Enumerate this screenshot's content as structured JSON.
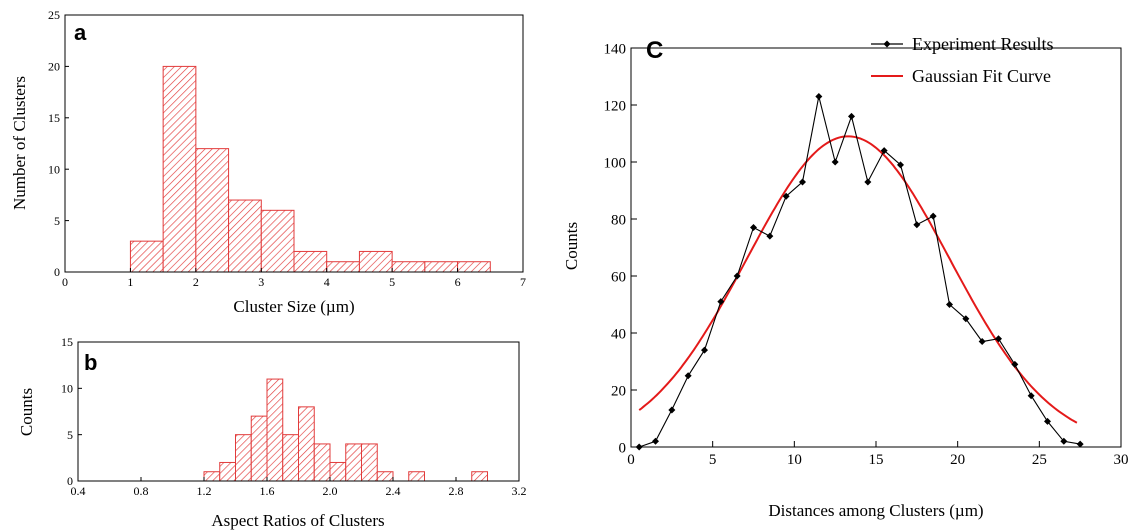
{
  "chart_data": [
    {
      "panel": "a",
      "type": "bar",
      "xlabel": "Cluster Size (µm)",
      "ylabel": "Number of Clusters",
      "xlim": [
        0,
        7
      ],
      "ylim": [
        0,
        25
      ],
      "xticks": [
        0,
        1,
        2,
        3,
        4,
        5,
        6,
        7
      ],
      "yticks": [
        0,
        5,
        10,
        15,
        20,
        25
      ],
      "bin_width": 0.5,
      "bins": [
        1.0,
        1.5,
        2.0,
        2.5,
        3.0,
        3.5,
        4.0,
        4.5,
        5.0,
        5.5,
        6.0
      ],
      "values": [
        3,
        20,
        12,
        7,
        6,
        2,
        1,
        2,
        1,
        1,
        1
      ],
      "color": "#e23b3b",
      "fill": "hatched"
    },
    {
      "panel": "b",
      "type": "bar",
      "xlabel": "Aspect Ratios of Clusters",
      "ylabel": "Counts",
      "xlim": [
        0.4,
        3.2
      ],
      "ylim": [
        0,
        15
      ],
      "xticks": [
        "0.4",
        "0.8",
        "1.2",
        "1.6",
        "2.0",
        "2.4",
        "2.8",
        "3.2"
      ],
      "yticks": [
        0,
        5,
        10,
        15
      ],
      "bin_width": 0.1,
      "bins": [
        1.2,
        1.3,
        1.4,
        1.5,
        1.6,
        1.7,
        1.8,
        1.9,
        2.0,
        2.1,
        2.2,
        2.3,
        2.5,
        2.9
      ],
      "values": [
        1,
        2,
        5,
        7,
        11,
        5,
        8,
        4,
        2,
        4,
        4,
        1,
        1,
        1
      ],
      "color": "#e23b3b",
      "fill": "hatched"
    },
    {
      "panel": "C",
      "type": "line",
      "xlabel": "Distances among Clusters (µm)",
      "ylabel": "Counts",
      "xlim": [
        0,
        30
      ],
      "ylim": [
        0,
        140
      ],
      "xticks": [
        0,
        5,
        10,
        15,
        20,
        25,
        30
      ],
      "yticks": [
        0,
        20,
        40,
        60,
        80,
        100,
        120,
        140
      ],
      "legend_position": "top-right",
      "series": [
        {
          "name": "Experiment Results",
          "color": "#000000",
          "marker": "diamond",
          "x": [
            0.5,
            1.5,
            2.5,
            3.5,
            4.5,
            5.5,
            6.5,
            7.5,
            8.5,
            9.5,
            10.5,
            11.5,
            12.5,
            13.5,
            14.5,
            15.5,
            16.5,
            17.5,
            18.5,
            19.5,
            20.5,
            21.5,
            22.5,
            23.5,
            24.5,
            25.5,
            26.5,
            27.5
          ],
          "y": [
            0,
            2,
            13,
            25,
            34,
            51,
            60,
            77,
            74,
            88,
            93,
            123,
            100,
            116,
            93,
            104,
            99,
            78,
            81,
            50,
            45,
            37,
            38,
            29,
            18,
            9,
            2,
            1
          ]
        },
        {
          "name": "Gaussian Fit Curve",
          "color": "#e41a1a",
          "marker": "none",
          "model": {
            "amplitude": 109,
            "center": 13.3,
            "sigma": 6.2
          },
          "x_range": [
            0.5,
            27.3
          ]
        }
      ]
    }
  ]
}
